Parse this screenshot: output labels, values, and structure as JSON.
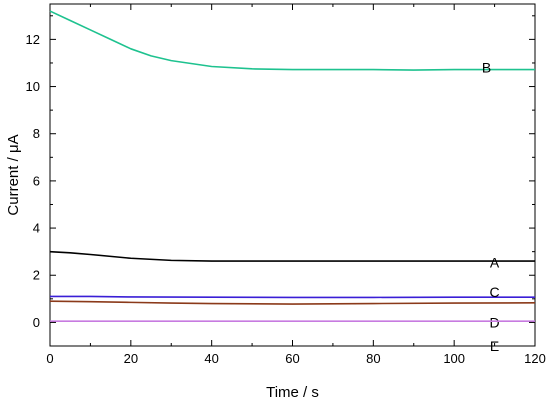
{
  "chart_data": {
    "type": "line",
    "xlabel": "Time / s",
    "ylabel": "Current / μA",
    "xlim": [
      0,
      120
    ],
    "ylim": [
      -1,
      13.5
    ],
    "xticks": [
      0,
      20,
      40,
      60,
      80,
      100,
      120
    ],
    "yticks": [
      0,
      2,
      4,
      6,
      8,
      10,
      12
    ],
    "grid": false,
    "series": [
      {
        "name": "B",
        "color": "#1ec28f",
        "x": [
          0,
          5,
          10,
          15,
          20,
          25,
          30,
          40,
          50,
          60,
          70,
          80,
          90,
          100,
          110,
          120
        ],
        "y": [
          13.2,
          12.8,
          12.4,
          12.0,
          11.6,
          11.3,
          11.1,
          10.85,
          10.75,
          10.72,
          10.72,
          10.72,
          10.7,
          10.72,
          10.72,
          10.72
        ]
      },
      {
        "name": "A",
        "color": "#000000",
        "x": [
          0,
          5,
          10,
          15,
          20,
          30,
          40,
          50,
          60,
          80,
          100,
          120
        ],
        "y": [
          3.0,
          2.95,
          2.88,
          2.8,
          2.72,
          2.63,
          2.6,
          2.6,
          2.6,
          2.6,
          2.6,
          2.6
        ]
      },
      {
        "name": "C",
        "color": "#3a1fd6",
        "x": [
          0,
          10,
          20,
          40,
          60,
          80,
          100,
          120
        ],
        "y": [
          1.1,
          1.1,
          1.08,
          1.07,
          1.06,
          1.06,
          1.07,
          1.07
        ]
      },
      {
        "name": "D",
        "color": "#8b3a1a",
        "x": [
          0,
          10,
          20,
          30,
          40,
          60,
          80,
          100,
          120
        ],
        "y": [
          0.9,
          0.88,
          0.85,
          0.82,
          0.8,
          0.78,
          0.8,
          0.82,
          0.83
        ]
      },
      {
        "name": "E",
        "color": "#c77be0",
        "x": [
          0,
          20,
          40,
          60,
          80,
          100,
          120
        ],
        "y": [
          0.05,
          0.05,
          0.05,
          0.05,
          0.05,
          0.05,
          0.05
        ]
      }
    ]
  }
}
